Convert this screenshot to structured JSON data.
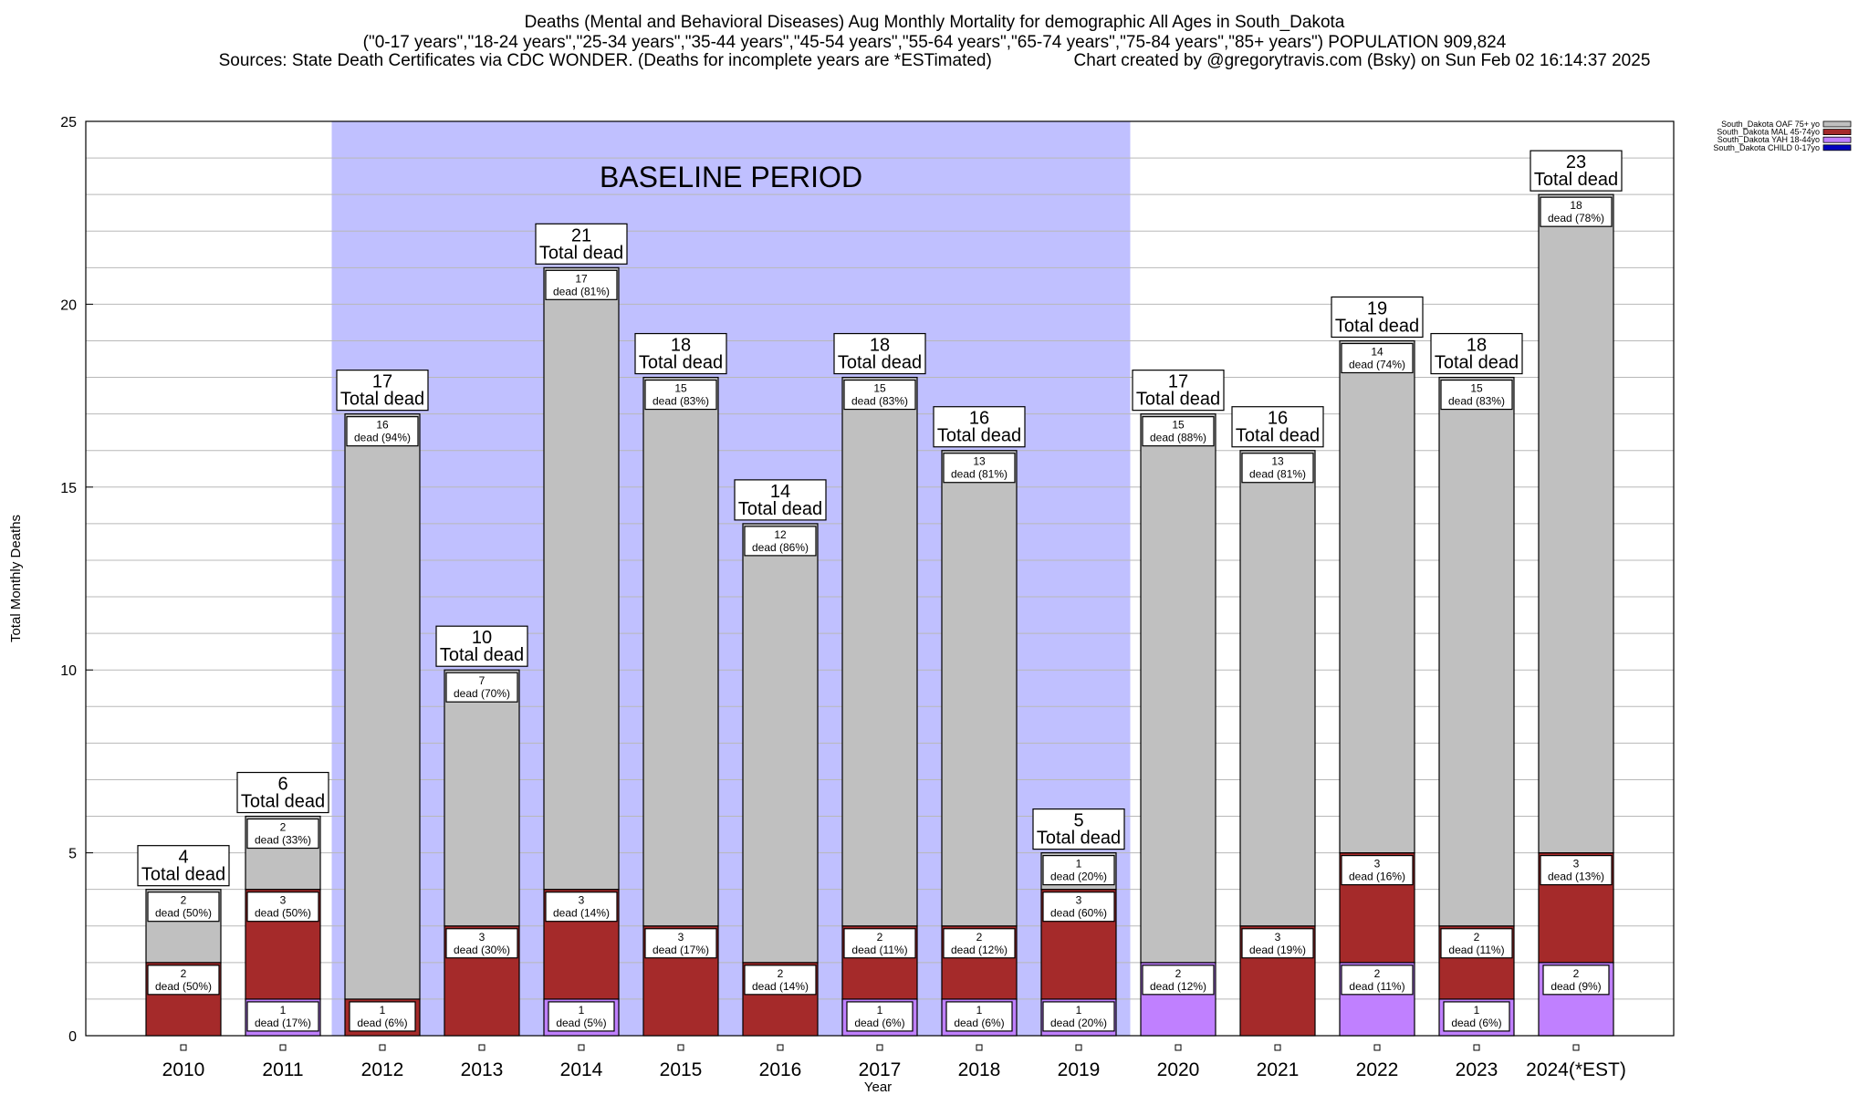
{
  "header": {
    "line1": "Deaths (Mental and Behavioral Diseases) Aug Monthly Mortality for demographic All Ages in South_Dakota",
    "line2": "(\"0-17 years\",\"18-24 years\",\"25-34 years\",\"35-44 years\",\"45-54 years\",\"55-64 years\",\"65-74 years\",\"75-84 years\",\"85+ years\") POPULATION 909,824",
    "line3": "Sources: State Death Certificates via CDC WONDER. (Deaths for incomplete years are *ESTimated)                 Chart created by @gregorytravis.com (Bsky) on Sun Feb 02 16:14:37 2025"
  },
  "chart_data": {
    "type": "bar",
    "stacked": true,
    "categories": [
      "2010",
      "2011",
      "2012",
      "2013",
      "2014",
      "2015",
      "2016",
      "2017",
      "2018",
      "2019",
      "2020",
      "2021",
      "2022",
      "2023",
      "2024(*EST)"
    ],
    "series": [
      {
        "name": "South_Dakota CHILD 0-17yo",
        "color": "#0000c0",
        "values": [
          0,
          0,
          0,
          0,
          0,
          0,
          0,
          0,
          0,
          0,
          0,
          0,
          0,
          0,
          0
        ],
        "labels": [
          "",
          "",
          "",
          "",
          "",
          "",
          "",
          "",
          "",
          "",
          "",
          "",
          "",
          "",
          ""
        ]
      },
      {
        "name": "South_Dakota YAH 18-44yo",
        "color": "#c080ff",
        "values": [
          0,
          1,
          0,
          0,
          1,
          0,
          0,
          1,
          1,
          1,
          2,
          0,
          2,
          1,
          2
        ],
        "labels": [
          "",
          "dead (17%)",
          "",
          "",
          "dead (5%)",
          "",
          "",
          "dead (6%)",
          "dead (6%)",
          "dead (20%)",
          "dead (12%)",
          "",
          "dead (11%)",
          "dead (6%)",
          "dead (9%)"
        ]
      },
      {
        "name": "South_Dakota MAL 45-74yo",
        "color": "#a52a2a",
        "values": [
          2,
          3,
          1,
          3,
          3,
          3,
          2,
          2,
          2,
          3,
          0,
          3,
          3,
          2,
          3
        ],
        "labels": [
          "dead (50%)",
          "dead (50%)",
          "dead (6%)",
          "dead (30%)",
          "dead (14%)",
          "dead (17%)",
          "dead (14%)",
          "dead (11%)",
          "dead (12%)",
          "dead (60%)",
          "",
          "dead (19%)",
          "dead (16%)",
          "dead (11%)",
          "dead (13%)"
        ]
      },
      {
        "name": "South_Dakota OAF 75+ yo",
        "color": "#c0c0c0",
        "values": [
          2,
          2,
          16,
          7,
          17,
          15,
          12,
          15,
          13,
          1,
          15,
          13,
          14,
          15,
          18
        ],
        "labels": [
          "dead (50%)",
          "dead (33%)",
          "dead (94%)",
          "dead (70%)",
          "dead (81%)",
          "dead (83%)",
          "dead (86%)",
          "dead (83%)",
          "dead (81%)",
          "dead (20%)",
          "dead (88%)",
          "dead (81%)",
          "dead (74%)",
          "dead (83%)",
          "dead (78%)"
        ]
      }
    ],
    "totals": [
      4,
      6,
      17,
      10,
      21,
      18,
      14,
      18,
      16,
      5,
      17,
      16,
      19,
      18,
      23
    ],
    "total_suffix": "Total dead",
    "ylabel": "Total Monthly Deaths",
    "xlabel": "Year",
    "ylim": [
      0,
      25
    ],
    "yticks": [
      0,
      5,
      10,
      15,
      20,
      25
    ],
    "grid": true,
    "legend_position": "top-right",
    "legend_order": [
      "South_Dakota OAF 75+ yo",
      "South_Dakota MAL 45-74yo",
      "South_Dakota YAH 18-44yo",
      "South_Dakota CHILD 0-17yo"
    ],
    "baseline": {
      "label": "BASELINE PERIOD",
      "from": "2012",
      "to": "2019",
      "color": "#c0c0ff"
    }
  }
}
